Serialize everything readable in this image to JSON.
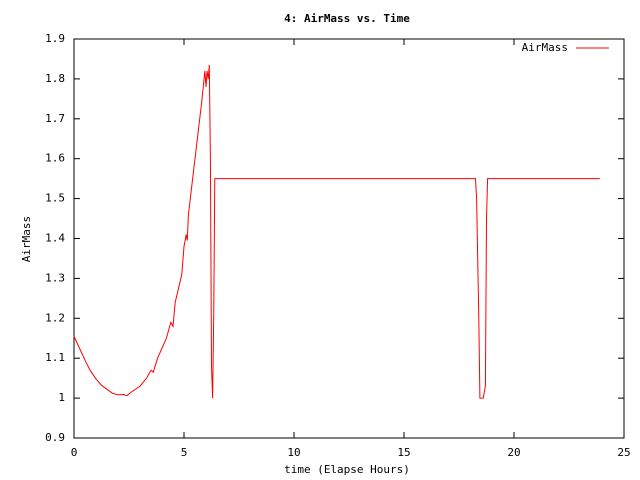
{
  "chart_data": {
    "type": "line",
    "title": "4: AirMass vs. Time",
    "x_label": "time (Elapse Hours)",
    "y_label": "AirMass",
    "xlim": [
      0,
      25
    ],
    "xticks": [
      0,
      5,
      10,
      15,
      20,
      25
    ],
    "ylim": [
      0.9,
      1.9
    ],
    "yticks": [
      0.9,
      1,
      1.1,
      1.2,
      1.3,
      1.4,
      1.5,
      1.6,
      1.7,
      1.8,
      1.9
    ],
    "grid": false,
    "legend": "top-right",
    "x": [
      0,
      0.25,
      0.5,
      0.75,
      1,
      1.25,
      1.5,
      1.75,
      2,
      2.25,
      2.4,
      2.6,
      3,
      3.3,
      3.5,
      3.6,
      3.8,
      4.2,
      4.4,
      4.5,
      4.6,
      4.9,
      5.0,
      5.1,
      5.15,
      5.2,
      5.5,
      5.8,
      5.95,
      6.0,
      6.05,
      6.1,
      6.15,
      6.2,
      6.25,
      6.3,
      6.35,
      6.4,
      18.25,
      18.3,
      18.4,
      18.45,
      18.6,
      18.7,
      18.75,
      18.8,
      23.9
    ],
    "series": [
      {
        "name": "AirMass",
        "color": "#ff0000",
        "values": [
          1.155,
          1.125,
          1.095,
          1.068,
          1.048,
          1.032,
          1.022,
          1.012,
          1.008,
          1.009,
          1.006,
          1.015,
          1.03,
          1.05,
          1.07,
          1.065,
          1.1,
          1.15,
          1.19,
          1.18,
          1.24,
          1.31,
          1.38,
          1.41,
          1.395,
          1.46,
          1.6,
          1.74,
          1.82,
          1.78,
          1.82,
          1.8,
          1.835,
          1.6,
          1.08,
          1.0,
          1.2,
          1.55,
          1.55,
          1.5,
          1.2,
          1.0,
          1.0,
          1.03,
          1.45,
          1.55,
          1.55
        ]
      }
    ]
  }
}
